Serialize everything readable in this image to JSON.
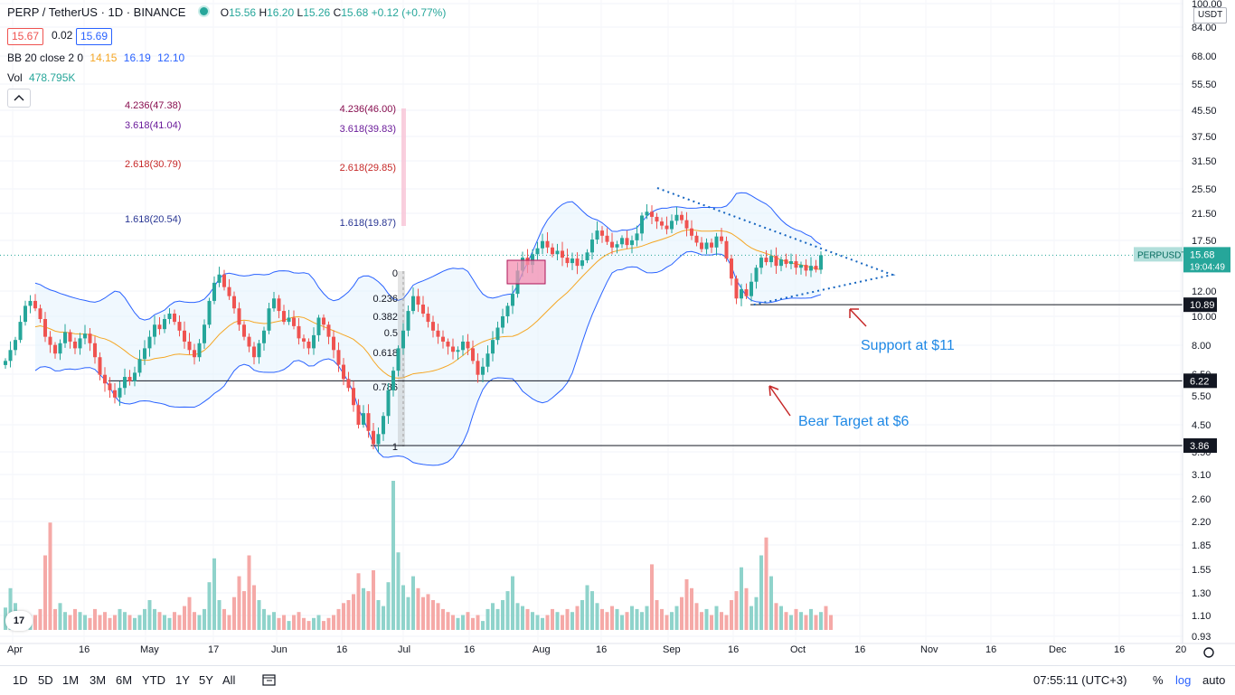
{
  "header": {
    "symbol": "PERP / TetherUS · 1D · BINANCE",
    "o_label": "O",
    "o": "15.56",
    "h_label": "H",
    "h": "16.20",
    "l_label": "L",
    "l": "15.26",
    "c_label": "C",
    "c": "15.68",
    "change": "+0.12 (+0.77%)",
    "bid": "15.67",
    "spread": "0.02",
    "ask": "15.69"
  },
  "indicators": {
    "bb": {
      "label": "BB 20 close 2 0",
      "basis": "14.15",
      "upper": "16.19",
      "lower": "12.10"
    },
    "vol": {
      "label": "Vol",
      "value": "478.795K"
    }
  },
  "currency_label": "USDT",
  "bottom_bar": {
    "timeframes": [
      "1D",
      "5D",
      "1M",
      "3M",
      "6M",
      "YTD",
      "1Y",
      "5Y",
      "All"
    ],
    "clock": "07:55:11 (UTC+3)",
    "percent": "%",
    "log": "log",
    "auto": "auto"
  },
  "colors": {
    "up": "#26a69a",
    "down": "#ef5350",
    "bb_band": "#2962ff",
    "bb_basis": "#f5a623",
    "fib": "#7b1fa2",
    "annotation_blue": "#1e88e5",
    "annotation_red": "#c62828"
  },
  "chart_data": {
    "type": "candlestick",
    "symbol": "PERPUSDT",
    "timeframe": "1D",
    "y_scale": "log",
    "ylim": [
      0.93,
      100
    ],
    "y_ticks": [
      100.0,
      84.0,
      68.0,
      55.5,
      45.5,
      37.5,
      31.5,
      25.5,
      21.5,
      17.5,
      12.0,
      10.0,
      8.0,
      6.5,
      5.5,
      4.5,
      3.5,
      3.1,
      2.6,
      2.2,
      1.85,
      1.55,
      1.3,
      1.1,
      0.93
    ],
    "x_ticks": [
      "Apr",
      "16",
      "May",
      "17",
      "Jun",
      "16",
      "Jul",
      "16",
      "Aug",
      "16",
      "Sep",
      "16",
      "Oct",
      "16",
      "Nov",
      "16",
      "Dec",
      "16",
      "20"
    ],
    "last_price": {
      "label": "PERPUSDT",
      "value": "15.68",
      "countdown": "19:04:49"
    },
    "price_lines": [
      {
        "value": "10.89"
      },
      {
        "value": "6.22"
      },
      {
        "value": "3.86"
      }
    ],
    "closes": [
      7.2,
      7.8,
      8.4,
      9.6,
      10.8,
      11.2,
      10.6,
      9.8,
      8.6,
      8.1,
      7.6,
      8.2,
      8.9,
      8.3,
      7.9,
      8.5,
      8.8,
      8.2,
      7.4,
      6.5,
      6.1,
      5.8,
      5.5,
      5.9,
      6.4,
      6.2,
      6.6,
      7.3,
      7.9,
      8.6,
      9.4,
      9.1,
      9.8,
      10.2,
      9.6,
      9.0,
      8.3,
      7.8,
      7.4,
      8.2,
      9.4,
      11.2,
      12.8,
      13.6,
      12.4,
      11.6,
      10.6,
      9.4,
      8.6,
      8.0,
      7.4,
      8.2,
      9.0,
      10.6,
      11.4,
      10.4,
      9.6,
      9.9,
      9.3,
      8.5,
      8.3,
      7.9,
      8.7,
      9.9,
      9.4,
      8.6,
      7.8,
      7.0,
      6.3,
      5.9,
      5.2,
      4.5,
      4.9,
      4.3,
      3.9,
      4.2,
      4.8,
      5.8,
      6.7,
      7.9,
      9.0,
      10.4,
      11.6,
      10.9,
      10.2,
      9.6,
      9.0,
      8.6,
      8.3,
      8.0,
      7.7,
      7.8,
      8.3,
      7.9,
      7.2,
      6.5,
      6.9,
      7.6,
      8.4,
      9.2,
      10.0,
      10.8,
      11.8,
      14.0,
      15.4,
      14.6,
      15.8,
      16.5,
      17.4,
      16.6,
      15.8,
      16.2,
      15.4,
      14.8,
      15.3,
      14.5,
      15.1,
      16.0,
      17.6,
      18.8,
      18.1,
      17.3,
      16.6,
      17.0,
      17.8,
      16.9,
      17.5,
      18.4,
      21.0,
      21.6,
      20.8,
      20.1,
      19.5,
      19.0,
      20.2,
      21.1,
      20.3,
      19.1,
      18.1,
      17.2,
      16.4,
      17.2,
      16.6,
      18.0,
      17.4,
      15.3,
      13.2,
      11.4,
      12.2,
      11.6,
      12.9,
      14.3,
      15.4,
      14.9,
      15.6,
      14.5,
      15.2,
      14.7,
      15.0,
      14.3,
      14.6,
      14.0,
      14.5,
      14.1,
      15.68
    ],
    "volume_relative": [
      0.15,
      0.28,
      0.18,
      0.12,
      0.1,
      0.08,
      0.1,
      0.14,
      0.5,
      0.72,
      0.14,
      0.18,
      0.12,
      0.1,
      0.14,
      0.12,
      0.1,
      0.08,
      0.14,
      0.1,
      0.12,
      0.08,
      0.1,
      0.14,
      0.12,
      0.1,
      0.08,
      0.1,
      0.14,
      0.2,
      0.14,
      0.12,
      0.1,
      0.08,
      0.12,
      0.1,
      0.16,
      0.22,
      0.12,
      0.1,
      0.14,
      0.32,
      0.48,
      0.2,
      0.14,
      0.1,
      0.22,
      0.36,
      0.26,
      0.5,
      0.3,
      0.2,
      0.14,
      0.1,
      0.12,
      0.08,
      0.1,
      0.06,
      0.1,
      0.12,
      0.08,
      0.06,
      0.08,
      0.1,
      0.06,
      0.08,
      0.1,
      0.14,
      0.18,
      0.2,
      0.24,
      0.38,
      0.28,
      0.26,
      0.4,
      0.2,
      0.16,
      0.32,
      1.0,
      0.52,
      0.3,
      0.22,
      0.36,
      0.28,
      0.22,
      0.24,
      0.2,
      0.18,
      0.14,
      0.12,
      0.1,
      0.08,
      0.1,
      0.12,
      0.08,
      0.1,
      0.06,
      0.14,
      0.18,
      0.14,
      0.2,
      0.26,
      0.36,
      0.18,
      0.16,
      0.14,
      0.12,
      0.1,
      0.08,
      0.1,
      0.14,
      0.12,
      0.1,
      0.14,
      0.12,
      0.16,
      0.2,
      0.3,
      0.26,
      0.18,
      0.14,
      0.12,
      0.16,
      0.14,
      0.1,
      0.12,
      0.16,
      0.14,
      0.12,
      0.16,
      0.44,
      0.2,
      0.14,
      0.1,
      0.12,
      0.16,
      0.22,
      0.34,
      0.28,
      0.18,
      0.12,
      0.14,
      0.1,
      0.16,
      0.12,
      0.1,
      0.2,
      0.26,
      0.42,
      0.28,
      0.16,
      0.22,
      0.5,
      0.62,
      0.36,
      0.18,
      0.16,
      0.12,
      0.1,
      0.14,
      0.12,
      0.1,
      0.14,
      0.1,
      0.12,
      0.16,
      0.1
    ],
    "bollinger": {
      "length": 20,
      "source": "close",
      "mult": 2,
      "offset": 0
    },
    "fibonacci": [
      {
        "level": "0",
        "value": null
      },
      {
        "level": "0.236",
        "value": null
      },
      {
        "level": "0.382",
        "value": null
      },
      {
        "level": "0.5",
        "value": null
      },
      {
        "level": "0.618",
        "value": null
      },
      {
        "level": "0.786",
        "value": null
      },
      {
        "level": "1",
        "value": null
      }
    ],
    "fib_extensions_left": [
      {
        "label": "4.236(47.38)",
        "value": 47.38
      },
      {
        "label": "3.618(41.04)",
        "value": 41.04
      },
      {
        "label": "2.618(30.79)",
        "value": 30.79
      },
      {
        "label": "1.618(20.54)",
        "value": 20.54
      }
    ],
    "fib_extensions_right": [
      {
        "label": "4.236(46.00)",
        "value": 46.0
      },
      {
        "label": "3.618(39.83)",
        "value": 39.83
      },
      {
        "label": "2.618(29.85)",
        "value": 29.85
      },
      {
        "label": "1.618(19.87)",
        "value": 19.87
      }
    ],
    "annotations": [
      {
        "text": "Support at $11"
      },
      {
        "text": "Bear Target at $6"
      }
    ]
  }
}
